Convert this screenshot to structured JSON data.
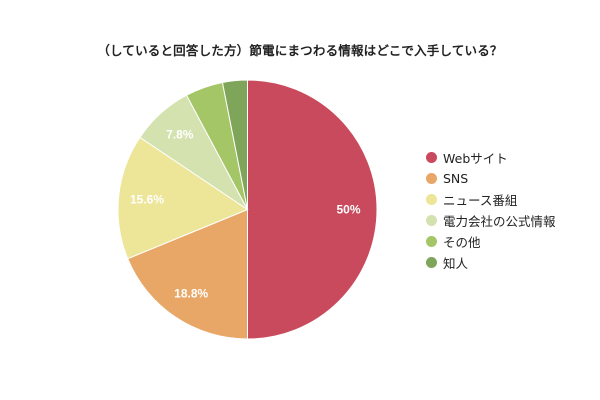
{
  "title": "（していると回答した方）節電にまつわる情報はどこで入手している？",
  "legend": {
    "items": [
      {
        "label": "Webサイト",
        "color": "#c94a5c"
      },
      {
        "label": "SNS",
        "color": "#e8a766"
      },
      {
        "label": "ニュース番組",
        "color": "#ede598"
      },
      {
        "label": "電力会社の公式情報",
        "color": "#d4e2b0"
      },
      {
        "label": "その他",
        "color": "#a5c666"
      },
      {
        "label": "知人",
        "color": "#7fa55a"
      }
    ]
  },
  "chart_data": {
    "type": "pie",
    "title": "（していると回答した方）節電にまつわる情報はどこで入手している？",
    "categories": [
      "Webサイト",
      "SNS",
      "ニュース番組",
      "電力会社の公式情報",
      "その他",
      "知人"
    ],
    "values": [
      50,
      18.8,
      15.6,
      7.8,
      4.7,
      3.1
    ],
    "data_labels": [
      "50%",
      "18.8%",
      "15.6%",
      "7.8%",
      "",
      ""
    ],
    "colors": [
      "#c94a5c",
      "#e8a766",
      "#ede598",
      "#d4e2b0",
      "#a5c666",
      "#7fa55a"
    ],
    "unit": "%",
    "start_angle_deg": 0,
    "direction": "clockwise",
    "legend_position": "right",
    "center": [
      247.5,
      209.5
    ],
    "radius": 129.5
  }
}
